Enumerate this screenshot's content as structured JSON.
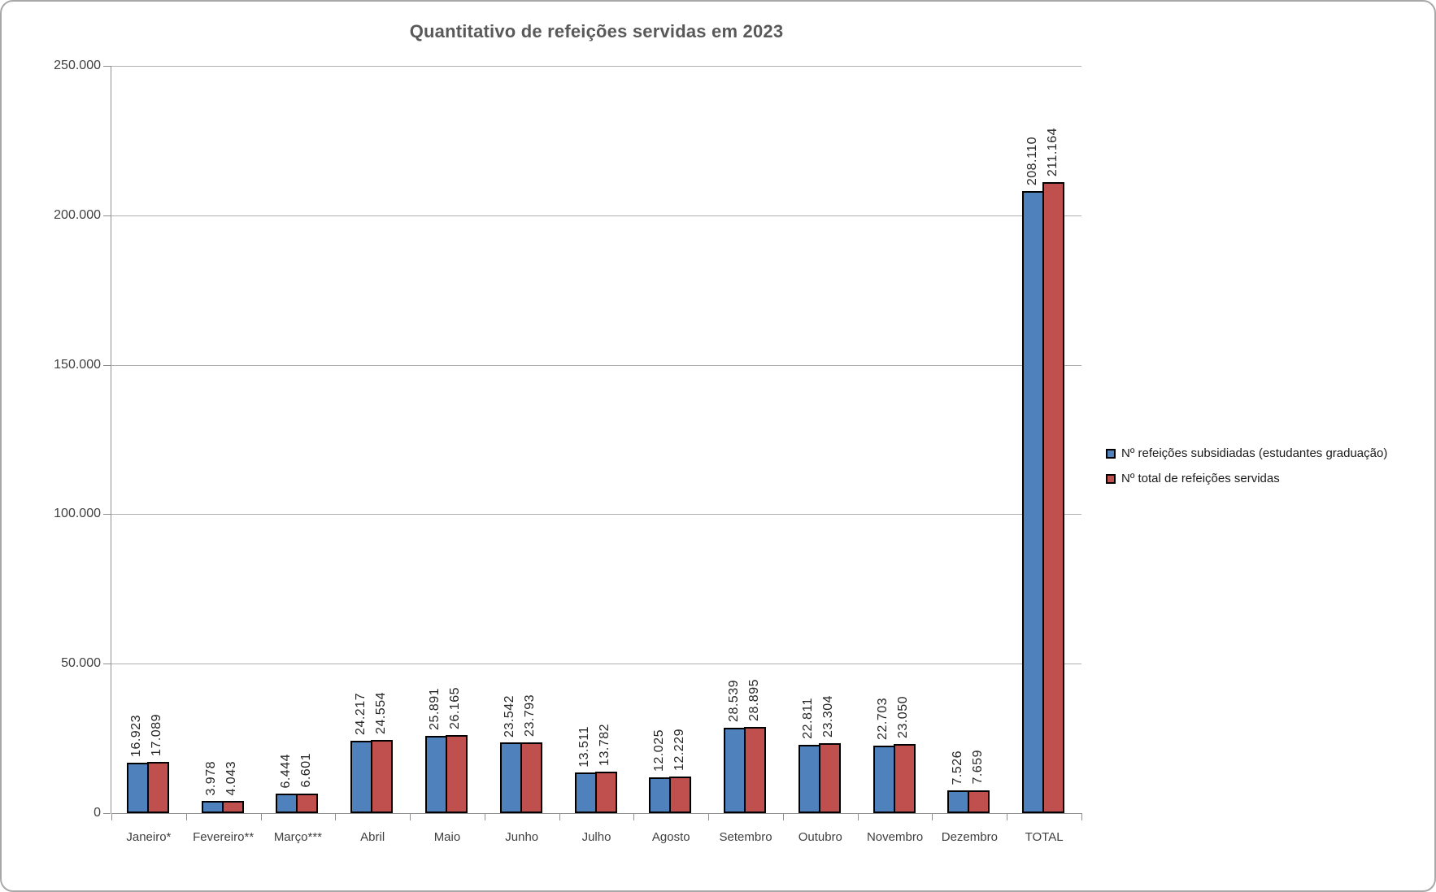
{
  "title": "Quantitativo de refeições servidas em 2023",
  "colors": {
    "series1_fill": "#4F81BD",
    "series2_fill": "#C0504D",
    "bar_border": "#000000",
    "gridline": "#B0B0B0",
    "axis_line": "#8E8E8E",
    "title_text": "#595959",
    "axis_text": "#404040",
    "chart_border": "#A8A8A8"
  },
  "chart_data": {
    "type": "bar",
    "title": "Quantitativo de refeições servidas em 2023",
    "categories": [
      "Janeiro*",
      "Fevereiro**",
      "Março***",
      "Abril",
      "Maio",
      "Junho",
      "Julho",
      "Agosto",
      "Setembro",
      "Outubro",
      "Novembro",
      "Dezembro",
      "TOTAL"
    ],
    "series": [
      {
        "name": "Nº refeições subsidiadas (estudantes graduação)",
        "color": "#4F81BD",
        "values": [
          16923,
          3978,
          6444,
          24217,
          25891,
          23542,
          13511,
          12025,
          28539,
          22811,
          22703,
          7526,
          208110
        ]
      },
      {
        "name": "Nº total de refeições servidas",
        "color": "#C0504D",
        "values": [
          17089,
          4043,
          6601,
          24554,
          26165,
          23793,
          13782,
          12229,
          28895,
          23304,
          23050,
          7659,
          211164
        ]
      }
    ],
    "data_labels": [
      "16.923",
      "17.089",
      "3.978",
      "4.043",
      "6.444",
      "6.601",
      "24.217",
      "24.554",
      "25.891",
      "26.165",
      "23.542",
      "23.793",
      "13.511",
      "13.782",
      "12.025",
      "12.229",
      "28.539",
      "28.895",
      "22.811",
      "23.304",
      "22.703",
      "23.050",
      "7.526",
      "7.659",
      "208.110",
      "211.164"
    ],
    "xlabel": "",
    "ylabel": "",
    "ylim": [
      0,
      250000
    ],
    "ytick_interval": 50000,
    "ytick_labels": [
      "0",
      "50.000",
      "100.000",
      "150.000",
      "200.000",
      "250.000"
    ],
    "grid": true,
    "legend_position": "right",
    "data_labels_rotation": 90
  }
}
